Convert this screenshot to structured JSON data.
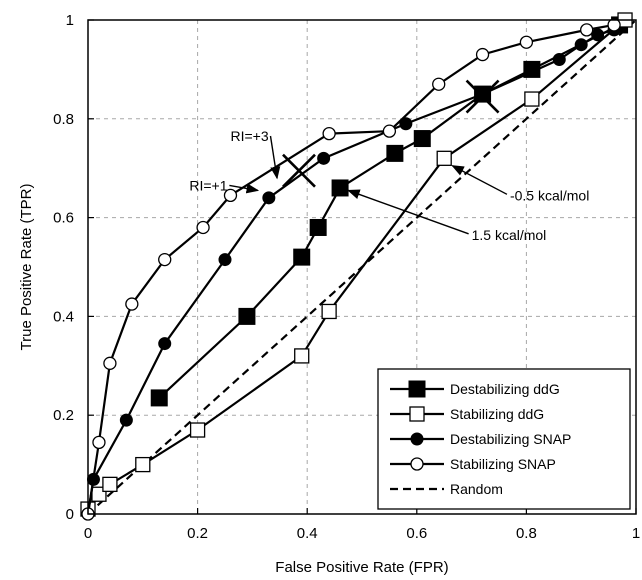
{
  "chart_data": {
    "type": "line",
    "title": "",
    "xlabel": "False Positive Rate (FPR)",
    "ylabel": "True Positive Rate (TPR)",
    "xlim": [
      0,
      1
    ],
    "ylim": [
      0,
      1
    ],
    "xticks": [
      0,
      0.2,
      0.4,
      0.6,
      0.8,
      1
    ],
    "yticks": [
      0,
      0.2,
      0.4,
      0.6,
      0.8,
      1
    ],
    "xtick_labels": [
      "0",
      "0.2",
      "0.4",
      "0.6",
      "0.8",
      "1"
    ],
    "ytick_labels": [
      "0",
      "0.2",
      "0.4",
      "0.6",
      "0.8",
      "1"
    ],
    "grid": true,
    "legend_position": "bottom-right",
    "series": [
      {
        "name": "Destabilizing ddG",
        "marker": "filled-square",
        "line": "solid",
        "x": [
          0.13,
          0.29,
          0.39,
          0.42,
          0.46,
          0.56,
          0.61,
          0.72,
          0.81,
          0.97
        ],
        "y": [
          0.235,
          0.4,
          0.52,
          0.58,
          0.66,
          0.73,
          0.76,
          0.85,
          0.9,
          0.99
        ]
      },
      {
        "name": "Stabilizing ddG",
        "marker": "open-square",
        "line": "solid",
        "x": [
          0,
          0.02,
          0.04,
          0.1,
          0.2,
          0.39,
          0.44,
          0.65,
          0.81,
          0.98
        ],
        "y": [
          0.01,
          0.04,
          0.06,
          0.1,
          0.17,
          0.32,
          0.41,
          0.72,
          0.84,
          1.0
        ]
      },
      {
        "name": "Destabilizing SNAP",
        "marker": "filled-circle",
        "line": "solid",
        "x": [
          0,
          0.01,
          0.07,
          0.14,
          0.25,
          0.33,
          0.43,
          0.58,
          0.72,
          0.86,
          0.9,
          0.93,
          0.96
        ],
        "y": [
          0,
          0.07,
          0.19,
          0.345,
          0.515,
          0.64,
          0.72,
          0.79,
          0.85,
          0.92,
          0.95,
          0.97,
          0.98
        ]
      },
      {
        "name": "Stabilizing SNAP",
        "marker": "open-circle",
        "line": "solid",
        "x": [
          0,
          0.02,
          0.04,
          0.08,
          0.14,
          0.21,
          0.26,
          0.44,
          0.55,
          0.64,
          0.72,
          0.8,
          0.91,
          0.96
        ],
        "y": [
          0,
          0.145,
          0.305,
          0.425,
          0.515,
          0.58,
          0.645,
          0.77,
          0.775,
          0.87,
          0.93,
          0.955,
          0.98,
          0.99
        ]
      },
      {
        "name": "Random",
        "marker": "none",
        "line": "dashed",
        "x": [
          0,
          1
        ],
        "y": [
          0,
          1
        ]
      }
    ],
    "cross_marks": [
      {
        "x": 0.385,
        "y": 0.695
      },
      {
        "x": 0.72,
        "y": 0.845
      }
    ],
    "annotations": [
      {
        "text": "RI=+3",
        "x": 0.26,
        "y": 0.755,
        "arrow_to": {
          "x": 0.345,
          "y": 0.68
        }
      },
      {
        "text": "RI=+1",
        "x": 0.185,
        "y": 0.655,
        "arrow_to": {
          "x": 0.31,
          "y": 0.655
        }
      },
      {
        "text": "-0.5 kcal/mol",
        "x": 0.77,
        "y": 0.635,
        "arrow_to": {
          "x": 0.665,
          "y": 0.705
        }
      },
      {
        "text": "1.5 kcal/mol",
        "x": 0.7,
        "y": 0.555,
        "arrow_to": {
          "x": 0.475,
          "y": 0.655
        }
      }
    ]
  }
}
